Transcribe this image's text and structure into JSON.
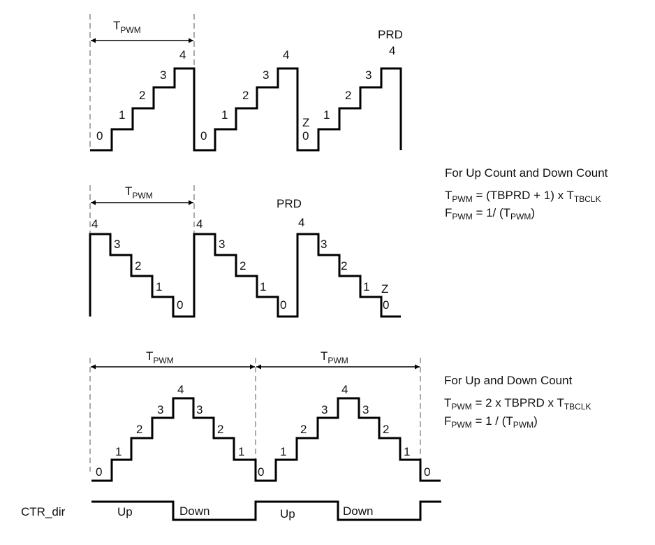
{
  "count_up": {
    "period_label": {
      "main": "T",
      "sub": "PWM"
    },
    "step_labels": [
      "0",
      "1",
      "2",
      "3",
      "4"
    ],
    "prd_label": "PRD",
    "zero_label": "Z"
  },
  "count_down": {
    "period_label": {
      "main": "T",
      "sub": "PWM"
    },
    "step_labels": [
      "4",
      "3",
      "2",
      "1",
      "0"
    ],
    "prd_label": "PRD",
    "zero_label": "Z"
  },
  "count_updown": {
    "period_label": {
      "main": "T",
      "sub": "PWM"
    },
    "step_labels": [
      "0",
      "1",
      "2",
      "3",
      "4",
      "3",
      "2",
      "1",
      "0"
    ]
  },
  "formulas_up_down": {
    "heading": "For Up Count and Down Count",
    "t_pwm": {
      "lhs": "T",
      "lhs_sub": "PWM",
      "eq": " = ",
      "mid": "(TBPRD + 1) x T",
      "rhs_sub": "TBCLK"
    },
    "f_pwm": {
      "lhs": "F",
      "lhs_sub": "PWM",
      "eq": " = ",
      "mid": "1/ (T",
      "rhs_sub": "PWM",
      "tail": ")"
    }
  },
  "formulas_updown": {
    "heading": "For Up and Down Count",
    "t_pwm": {
      "lhs": "T",
      "lhs_sub": "PWM",
      "eq": " = ",
      "mid": "2 x TBPRD x T",
      "rhs_sub": "TBCLK"
    },
    "f_pwm": {
      "lhs": "F",
      "lhs_sub": "PWM",
      "eq": " = ",
      "mid": "1 / (T",
      "rhs_sub": "PWM",
      "tail": ")"
    }
  },
  "ctr_dir": {
    "label": "CTR_dir",
    "segments": [
      "Up",
      "Down",
      "Up",
      "Down"
    ]
  }
}
